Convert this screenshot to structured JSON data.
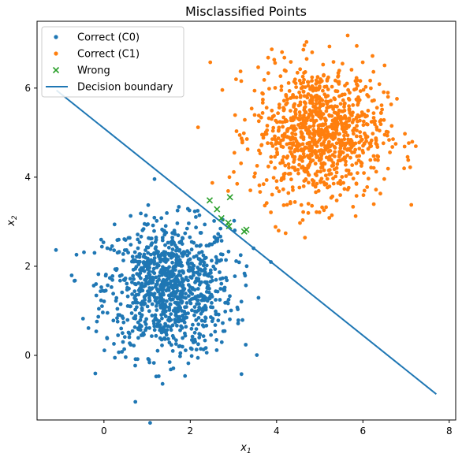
{
  "chart_data": {
    "type": "scatter",
    "title": "Misclassified Points",
    "xlabel": "x",
    "xlabel_sub": "1",
    "ylabel": "x",
    "ylabel_sub": "2",
    "xlim": [
      -1.55,
      8.15
    ],
    "ylim": [
      -1.45,
      7.5
    ],
    "x_ticks": [
      0,
      2,
      4,
      6,
      8
    ],
    "y_ticks": [
      0,
      2,
      4,
      6
    ],
    "grid": false,
    "legend_placement": "top-left",
    "clusters": [
      {
        "name": "Correct (C0)",
        "color": "#1f77b4",
        "center": [
          1.5,
          1.5
        ],
        "spread": 0.75,
        "count": 1000
      },
      {
        "name": "Correct (C1)",
        "color": "#ff7f0e",
        "center": [
          5.0,
          5.0
        ],
        "spread": 0.75,
        "count": 1000
      }
    ],
    "series": [
      {
        "name": "Correct (C0)",
        "marker": "dot",
        "color": "#1f77b4"
      },
      {
        "name": "Correct (C1)",
        "marker": "dot",
        "color": "#ff7f0e"
      },
      {
        "name": "Wrong",
        "marker": "x",
        "color": "#2ca02c",
        "points": [
          [
            2.45,
            3.48
          ],
          [
            2.62,
            3.28
          ],
          [
            2.72,
            3.08
          ],
          [
            2.88,
            2.98
          ],
          [
            2.92,
            3.55
          ],
          [
            2.9,
            2.9
          ],
          [
            3.25,
            2.78
          ],
          [
            3.3,
            2.82
          ]
        ]
      },
      {
        "name": "Decision boundary",
        "marker": "line",
        "color": "#1f77b4",
        "line": [
          [
            -1.1,
            5.95
          ],
          [
            7.7,
            -0.87
          ]
        ]
      }
    ]
  }
}
